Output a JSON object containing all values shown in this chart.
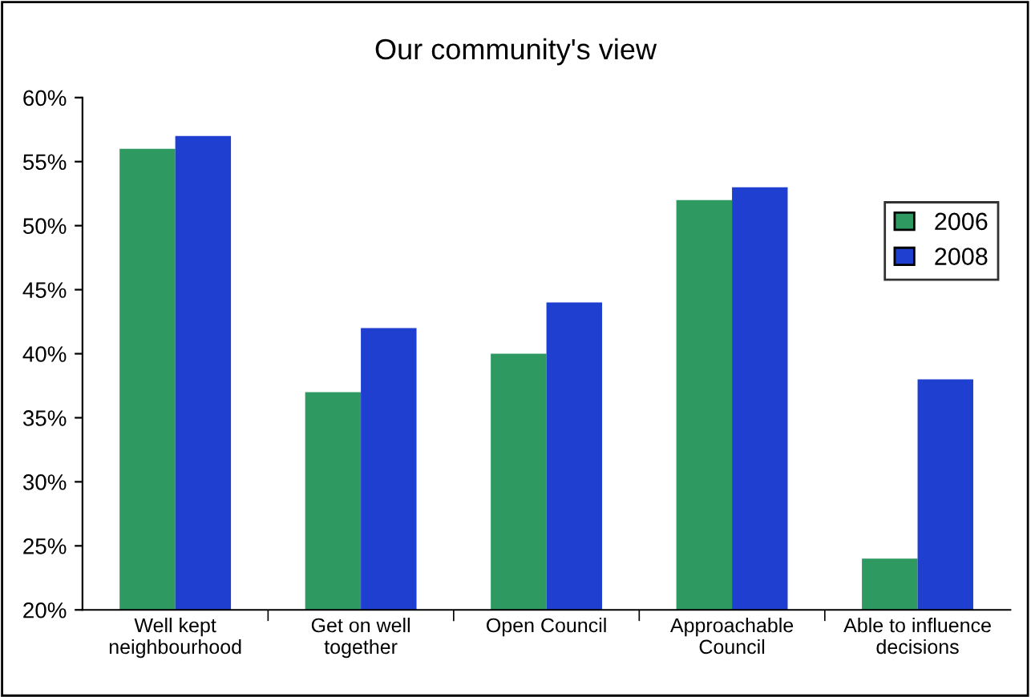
{
  "chart_data": {
    "type": "bar",
    "title": "Our community's view",
    "categories": [
      "Well kept\nneighbourhood",
      "Get on well\ntogether",
      "Open Council",
      "Approachable\nCouncil",
      "Able to influence\ndecisions"
    ],
    "series": [
      {
        "name": "2006",
        "color": "#2e9960",
        "values": [
          56,
          37,
          40,
          52,
          24
        ]
      },
      {
        "name": "2008",
        "color": "#1f3fd0",
        "values": [
          57,
          42,
          44,
          53,
          38
        ]
      }
    ],
    "ylim": [
      20,
      60
    ],
    "yticks": [
      {
        "value": 20,
        "label": "20%"
      },
      {
        "value": 25,
        "label": "25%"
      },
      {
        "value": 30,
        "label": "30%"
      },
      {
        "value": 35,
        "label": "35%"
      },
      {
        "value": 40,
        "label": "40%"
      },
      {
        "value": 45,
        "label": "45%"
      },
      {
        "value": 50,
        "label": "50%"
      },
      {
        "value": 55,
        "label": "55%"
      },
      {
        "value": 60,
        "label": "60%"
      }
    ],
    "legend": "right",
    "grid": false
  }
}
